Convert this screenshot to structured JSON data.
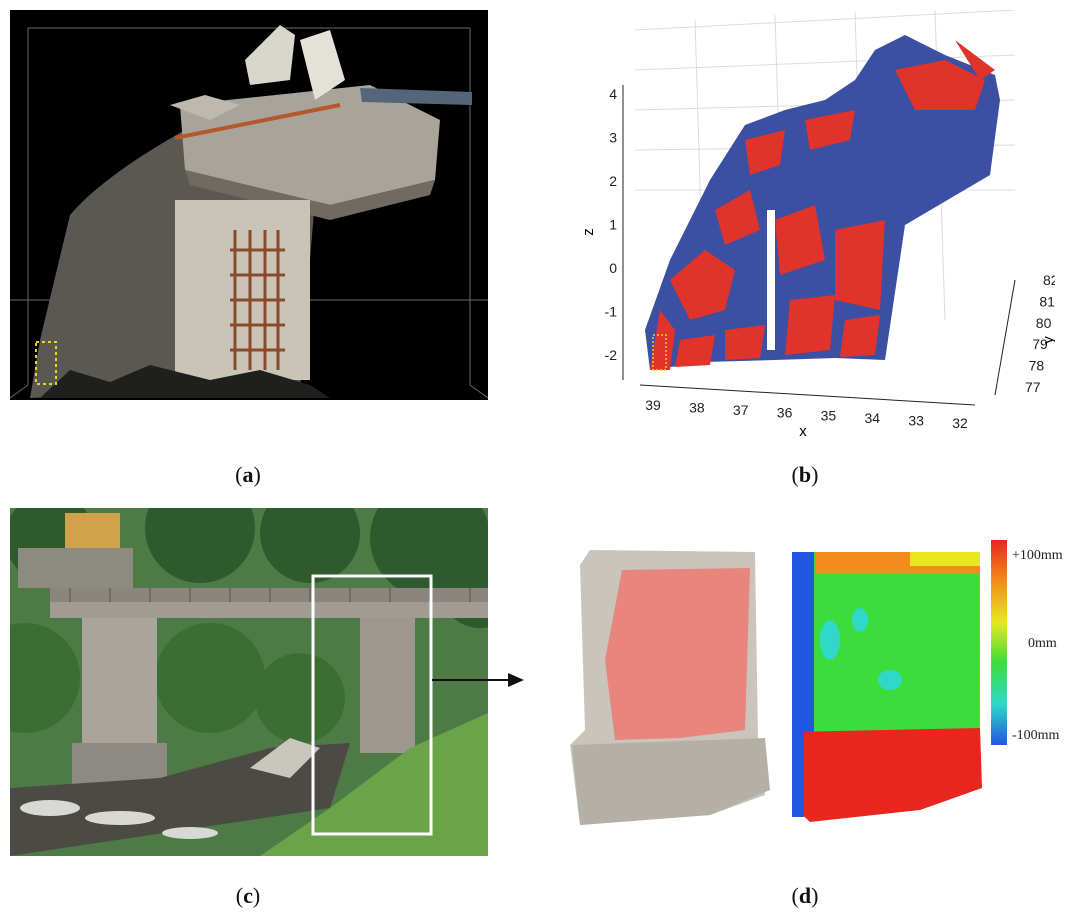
{
  "captions": {
    "a": "a",
    "b": "b",
    "c": "c",
    "d": "d"
  },
  "panel_b": {
    "xlabel": "x",
    "ylabel": "y",
    "zlabel": "z",
    "x_ticks": [
      "39",
      "38",
      "37",
      "36",
      "35",
      "34",
      "33",
      "32"
    ],
    "y_ticks": [
      "77",
      "78",
      "79",
      "80",
      "81",
      "82"
    ],
    "z_ticks": [
      "4",
      "3",
      "2",
      "1",
      "0",
      "-1",
      "-2"
    ],
    "series_colors": {
      "reference": "#3b4fa3",
      "scan": "#e0332b"
    }
  },
  "panel_d": {
    "colorbar": {
      "max_label": "+100mm",
      "mid_label": "0mm",
      "min_label": "-100mm",
      "colors": [
        "#e8261e",
        "#f28c1c",
        "#e8e81e",
        "#3ddc3d",
        "#2fd9c9",
        "#1f57e0"
      ]
    },
    "overlay_color": "#e8857d"
  }
}
